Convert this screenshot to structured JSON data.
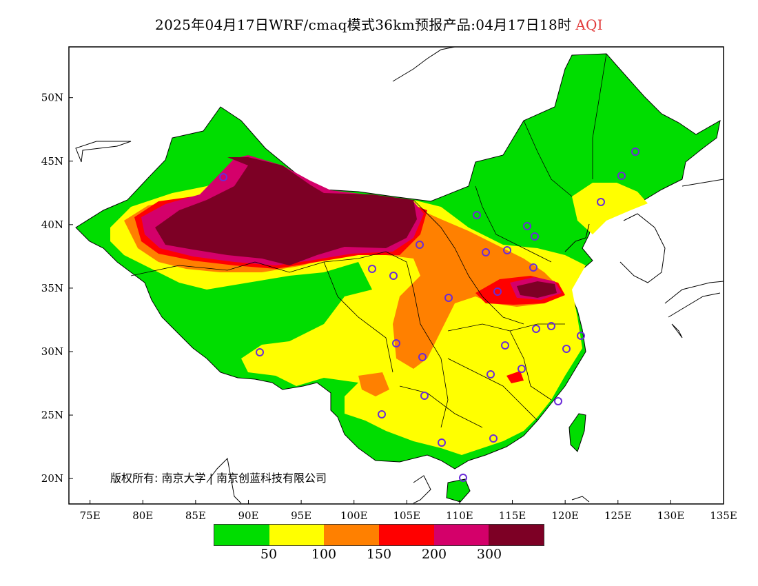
{
  "title": {
    "text": "2025年04月17日WRF/cmaq模式36km预报产品:04月17日18时",
    "variable": "AQI",
    "variable_color": "#e23b3b"
  },
  "axes": {
    "x_ticks": [
      "75E",
      "80E",
      "85E",
      "90E",
      "95E",
      "100E",
      "105E",
      "110E",
      "115E",
      "120E",
      "125E",
      "130E",
      "135E"
    ],
    "y_ticks": [
      "50N",
      "45N",
      "40N",
      "35N",
      "30N",
      "25N",
      "20N"
    ]
  },
  "copyright": "版权所有: 南京大学 | 南京创蓝科技有限公司",
  "legend": {
    "colors": [
      "#00dd00",
      "#ffff00",
      "#ff8000",
      "#ff0000",
      "#d4006a",
      "#7d0025"
    ],
    "labels": [
      "50",
      "100",
      "150",
      "200",
      "300"
    ]
  },
  "map_extent": {
    "lon": [
      73,
      135
    ],
    "lat": [
      18,
      54
    ]
  },
  "stations_color": "#6a2bd8"
}
